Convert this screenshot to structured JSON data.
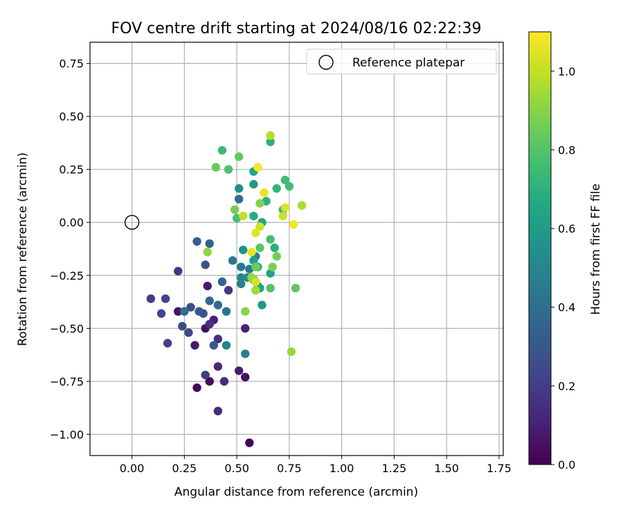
{
  "chart_data": {
    "type": "scatter",
    "title": "FOV centre drift starting at 2024/08/16 02:22:39",
    "xlabel": "Angular distance from reference (arcmin)",
    "ylabel": "Rotation from reference (arcmin)",
    "xlim": [
      -0.2,
      1.77
    ],
    "ylim": [
      -1.1,
      0.85
    ],
    "xticks": [
      0.0,
      0.25,
      0.5,
      0.75,
      1.0,
      1.25,
      1.5,
      1.75
    ],
    "xtick_labels": [
      "0.00",
      "0.25",
      "0.50",
      "0.75",
      "1.00",
      "1.25",
      "1.50",
      "1.75"
    ],
    "yticks": [
      0.75,
      0.5,
      0.25,
      0.0,
      -0.25,
      -0.5,
      -0.75,
      -1.0
    ],
    "ytick_labels": [
      "0.75",
      "0.50",
      "0.25",
      "0.00",
      "−0.25",
      "−0.50",
      "−0.75",
      "−1.00"
    ],
    "grid": true,
    "legend": {
      "position": "top-right",
      "entries": [
        "Reference platepar"
      ]
    },
    "reference_point": {
      "x": 0.0,
      "y": 0.0,
      "label": "Reference platepar"
    },
    "colorbar": {
      "label": "Hours from first FF file",
      "range": [
        0.0,
        1.1
      ],
      "ticks": [
        0.0,
        0.2,
        0.4,
        0.6,
        0.8,
        1.0
      ],
      "tick_labels": [
        "0.0",
        "0.2",
        "0.4",
        "0.6",
        "0.8",
        "1.0"
      ],
      "colormap": "viridis"
    },
    "points": [
      {
        "x": 0.56,
        "y": -1.04,
        "c": 0.01
      },
      {
        "x": 0.31,
        "y": -0.78,
        "c": 0.02
      },
      {
        "x": 0.37,
        "y": -0.75,
        "c": 0.03
      },
      {
        "x": 0.54,
        "y": -0.73,
        "c": 0.04
      },
      {
        "x": 0.35,
        "y": -0.5,
        "c": 0.05
      },
      {
        "x": 0.22,
        "y": -0.42,
        "c": 0.06
      },
      {
        "x": 0.3,
        "y": -0.58,
        "c": 0.07
      },
      {
        "x": 0.36,
        "y": -0.3,
        "c": 0.08
      },
      {
        "x": 0.51,
        "y": -0.7,
        "c": 0.09
      },
      {
        "x": 0.39,
        "y": -0.46,
        "c": 0.1
      },
      {
        "x": 0.54,
        "y": -0.5,
        "c": 0.11
      },
      {
        "x": 0.41,
        "y": -0.68,
        "c": 0.12
      },
      {
        "x": 0.44,
        "y": -0.75,
        "c": 0.13
      },
      {
        "x": 0.41,
        "y": -0.89,
        "c": 0.14
      },
      {
        "x": 0.37,
        "y": -0.48,
        "c": 0.15
      },
      {
        "x": 0.41,
        "y": -0.55,
        "c": 0.16
      },
      {
        "x": 0.22,
        "y": -0.23,
        "c": 0.17
      },
      {
        "x": 0.46,
        "y": -0.32,
        "c": 0.18
      },
      {
        "x": 0.35,
        "y": -0.72,
        "c": 0.19
      },
      {
        "x": 0.09,
        "y": -0.36,
        "c": 0.2
      },
      {
        "x": 0.17,
        "y": -0.57,
        "c": 0.21
      },
      {
        "x": 0.16,
        "y": -0.36,
        "c": 0.22
      },
      {
        "x": 0.14,
        "y": -0.43,
        "c": 0.23
      },
      {
        "x": 0.27,
        "y": -0.52,
        "c": 0.24
      },
      {
        "x": 0.24,
        "y": -0.49,
        "c": 0.25
      },
      {
        "x": 0.28,
        "y": -0.4,
        "c": 0.26
      },
      {
        "x": 0.35,
        "y": -0.2,
        "c": 0.27
      },
      {
        "x": 0.34,
        "y": -0.43,
        "c": 0.28
      },
      {
        "x": 0.39,
        "y": -0.58,
        "c": 0.3
      },
      {
        "x": 0.32,
        "y": -0.42,
        "c": 0.31
      },
      {
        "x": 0.31,
        "y": -0.09,
        "c": 0.33
      },
      {
        "x": 0.37,
        "y": -0.1,
        "c": 0.35
      },
      {
        "x": 0.43,
        "y": -0.28,
        "c": 0.36
      },
      {
        "x": 0.37,
        "y": -0.37,
        "c": 0.37
      },
      {
        "x": 0.41,
        "y": -0.39,
        "c": 0.38
      },
      {
        "x": 0.51,
        "y": 0.11,
        "c": 0.39
      },
      {
        "x": 0.25,
        "y": -0.42,
        "c": 0.4
      },
      {
        "x": 0.45,
        "y": -0.42,
        "c": 0.42
      },
      {
        "x": 0.48,
        "y": -0.18,
        "c": 0.43
      },
      {
        "x": 0.52,
        "y": -0.21,
        "c": 0.45
      },
      {
        "x": 0.56,
        "y": -0.22,
        "c": 0.46
      },
      {
        "x": 0.52,
        "y": -0.29,
        "c": 0.47
      },
      {
        "x": 0.54,
        "y": -0.62,
        "c": 0.48
      },
      {
        "x": 0.45,
        "y": -0.58,
        "c": 0.49
      },
      {
        "x": 0.59,
        "y": -0.16,
        "c": 0.5
      },
      {
        "x": 0.52,
        "y": -0.26,
        "c": 0.51
      },
      {
        "x": 0.55,
        "y": -0.26,
        "c": 0.52
      },
      {
        "x": 0.51,
        "y": 0.16,
        "c": 0.54
      },
      {
        "x": 0.53,
        "y": -0.13,
        "c": 0.55
      },
      {
        "x": 0.58,
        "y": -0.27,
        "c": 0.57
      },
      {
        "x": 0.62,
        "y": -0.39,
        "c": 0.58
      },
      {
        "x": 0.6,
        "y": -0.3,
        "c": 0.59
      },
      {
        "x": 0.58,
        "y": 0.18,
        "c": 0.6
      },
      {
        "x": 0.58,
        "y": -0.18,
        "c": 0.61
      },
      {
        "x": 0.61,
        "y": -0.31,
        "c": 0.62
      },
      {
        "x": 0.66,
        "y": -0.24,
        "c": 0.63
      },
      {
        "x": 0.62,
        "y": 0.0,
        "c": 0.64
      },
      {
        "x": 0.58,
        "y": 0.24,
        "c": 0.65
      },
      {
        "x": 0.59,
        "y": -0.32,
        "c": 0.66
      },
      {
        "x": 0.58,
        "y": 0.03,
        "c": 0.67
      },
      {
        "x": 0.6,
        "y": -0.21,
        "c": 0.68
      },
      {
        "x": 0.68,
        "y": -0.12,
        "c": 0.69
      },
      {
        "x": 0.66,
        "y": 0.38,
        "c": 0.7
      },
      {
        "x": 0.64,
        "y": 0.1,
        "c": 0.71
      },
      {
        "x": 0.69,
        "y": 0.16,
        "c": 0.72
      },
      {
        "x": 0.72,
        "y": 0.06,
        "c": 0.73
      },
      {
        "x": 0.43,
        "y": 0.34,
        "c": 0.74
      },
      {
        "x": 0.73,
        "y": 0.2,
        "c": 0.75
      },
      {
        "x": 0.75,
        "y": 0.17,
        "c": 0.76
      },
      {
        "x": 0.66,
        "y": -0.08,
        "c": 0.77
      },
      {
        "x": 0.5,
        "y": 0.02,
        "c": 0.78
      },
      {
        "x": 0.46,
        "y": 0.25,
        "c": 0.79
      },
      {
        "x": 0.66,
        "y": -0.31,
        "c": 0.8
      },
      {
        "x": 0.61,
        "y": -0.12,
        "c": 0.81
      },
      {
        "x": 0.78,
        "y": -0.31,
        "c": 0.82
      },
      {
        "x": 0.51,
        "y": 0.31,
        "c": 0.83
      },
      {
        "x": 0.4,
        "y": 0.26,
        "c": 0.84
      },
      {
        "x": 0.59,
        "y": -0.21,
        "c": 0.85
      },
      {
        "x": 0.69,
        "y": -0.16,
        "c": 0.86
      },
      {
        "x": 0.49,
        "y": 0.06,
        "c": 0.87
      },
      {
        "x": 0.67,
        "y": -0.21,
        "c": 0.88
      },
      {
        "x": 0.61,
        "y": 0.09,
        "c": 0.89
      },
      {
        "x": 0.54,
        "y": -0.42,
        "c": 0.9
      },
      {
        "x": 0.36,
        "y": -0.14,
        "c": 0.91
      },
      {
        "x": 0.57,
        "y": -0.26,
        "c": 0.92
      },
      {
        "x": 0.76,
        "y": -0.61,
        "c": 0.93
      },
      {
        "x": 0.59,
        "y": -0.32,
        "c": 0.94
      },
      {
        "x": 0.81,
        "y": 0.08,
        "c": 0.96
      },
      {
        "x": 0.66,
        "y": 0.41,
        "c": 0.98
      },
      {
        "x": 0.53,
        "y": 0.03,
        "c": 1.0
      },
      {
        "x": 0.72,
        "y": 0.03,
        "c": 1.01
      },
      {
        "x": 0.61,
        "y": -0.02,
        "c": 1.02
      },
      {
        "x": 0.59,
        "y": -0.28,
        "c": 1.03
      },
      {
        "x": 0.73,
        "y": 0.07,
        "c": 1.04
      },
      {
        "x": 0.59,
        "y": -0.05,
        "c": 1.05
      },
      {
        "x": 0.57,
        "y": -0.14,
        "c": 1.06
      },
      {
        "x": 0.63,
        "y": 0.14,
        "c": 1.07
      },
      {
        "x": 0.77,
        "y": -0.01,
        "c": 1.08
      },
      {
        "x": 0.6,
        "y": 0.26,
        "c": 1.09
      }
    ]
  }
}
